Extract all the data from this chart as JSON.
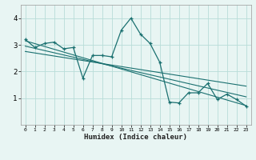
{
  "bg_color": "#e8f5f3",
  "line_color": "#1a7070",
  "grid_color": "#b8ddd8",
  "xlabel": "Humidex (Indice chaleur)",
  "xlim": [
    -0.5,
    23.5
  ],
  "ylim": [
    0,
    4.5
  ],
  "yticks": [
    1,
    2,
    3,
    4
  ],
  "xticks": [
    0,
    1,
    2,
    3,
    4,
    5,
    6,
    7,
    8,
    9,
    10,
    11,
    12,
    13,
    14,
    15,
    16,
    17,
    18,
    19,
    20,
    21,
    22,
    23
  ],
  "series1_x": [
    0,
    1,
    2,
    3,
    4,
    5,
    6,
    7,
    8,
    9,
    10,
    11,
    12,
    13,
    14,
    15,
    16,
    17,
    18,
    19,
    20,
    21,
    22,
    23
  ],
  "series1_y": [
    3.2,
    2.9,
    3.05,
    3.1,
    2.85,
    2.9,
    1.75,
    2.6,
    2.6,
    2.55,
    3.55,
    4.0,
    3.4,
    3.05,
    2.35,
    0.85,
    0.82,
    1.2,
    1.2,
    1.55,
    0.95,
    1.15,
    0.95,
    0.7
  ],
  "trend1_x": [
    0,
    23
  ],
  "trend1_y": [
    3.15,
    0.72
  ],
  "trend2_x": [
    0,
    23
  ],
  "trend2_y": [
    2.95,
    1.05
  ],
  "trend3_x": [
    0,
    23
  ],
  "trend3_y": [
    2.75,
    1.45
  ]
}
